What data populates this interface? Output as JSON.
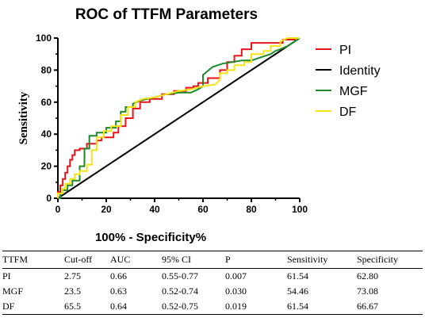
{
  "chart_data": {
    "type": "line",
    "title": "ROC of TTFM Parameters",
    "xlabel": "100%  - Specificity%",
    "ylabel": "Sensitivity",
    "xlim": [
      0,
      100
    ],
    "ylim": [
      0,
      100
    ],
    "xticks": [
      "0",
      "20",
      "40",
      "60",
      "80",
      "100"
    ],
    "yticks": [
      "0",
      "20",
      "40",
      "60",
      "80",
      "100"
    ],
    "legend_position": "right",
    "grid": false,
    "series": [
      {
        "name": "PI",
        "color": "#e8141b",
        "x": [
          0,
          0,
          1,
          1,
          2,
          2,
          3,
          3,
          4,
          4,
          5,
          5,
          6,
          6,
          7,
          7,
          9,
          9,
          12,
          12,
          16,
          16,
          18,
          18,
          23,
          23,
          25,
          25,
          28,
          28,
          31,
          31,
          34,
          34,
          38,
          38,
          43,
          43,
          48,
          48,
          53,
          53,
          56,
          56,
          58,
          58,
          62,
          62,
          67,
          67,
          70,
          70,
          73,
          73,
          76,
          76,
          80,
          80,
          93,
          93,
          98,
          98,
          100
        ],
        "y": [
          0,
          4,
          4,
          8,
          8,
          12,
          12,
          16,
          16,
          20,
          20,
          24,
          24,
          27,
          27,
          30,
          30,
          31,
          31,
          34,
          34,
          36,
          36,
          38,
          38,
          41,
          41,
          45,
          45,
          50,
          50,
          56,
          56,
          60,
          60,
          62,
          62,
          65,
          65,
          67,
          67,
          69,
          69,
          70,
          70,
          72,
          72,
          75,
          75,
          80,
          80,
          85,
          85,
          89,
          89,
          93,
          93,
          97,
          97,
          99,
          99,
          100,
          100
        ]
      },
      {
        "name": "Identity",
        "color": "#000000",
        "x": [
          0,
          100
        ],
        "y": [
          0,
          100
        ]
      },
      {
        "name": "MGF",
        "color": "#1e8a2a",
        "x": [
          0,
          1,
          1,
          2,
          2,
          4,
          4,
          6,
          6,
          9,
          9,
          11,
          11,
          13,
          13,
          16,
          16,
          20,
          20,
          24,
          24,
          26,
          26,
          28,
          28,
          31,
          31,
          34,
          40,
          45,
          50,
          55,
          58,
          60,
          60,
          64,
          68,
          72,
          76,
          80,
          84,
          88,
          90,
          92,
          95,
          98,
          100
        ],
        "y": [
          0,
          0,
          3,
          3,
          5,
          5,
          8,
          8,
          11,
          11,
          20,
          20,
          31,
          31,
          39,
          39,
          41,
          41,
          44,
          44,
          48,
          48,
          54,
          54,
          57,
          57,
          59,
          61,
          63,
          65,
          66,
          66,
          68,
          70,
          77,
          82,
          84,
          85,
          86,
          86,
          88,
          90,
          92,
          93,
          95,
          98,
          100
        ]
      },
      {
        "name": "DF",
        "color": "#f5e316",
        "x": [
          0,
          0,
          2,
          2,
          3,
          3,
          5,
          5,
          7,
          7,
          9,
          9,
          12,
          12,
          14,
          14,
          16,
          16,
          19,
          19,
          22,
          22,
          26,
          26,
          29,
          29,
          32,
          32,
          35,
          40,
          45,
          50,
          55,
          60,
          65,
          67,
          67,
          70,
          70,
          73,
          73,
          77,
          77,
          80,
          80,
          85,
          85,
          88,
          88,
          92,
          92,
          95,
          100
        ],
        "y": [
          0,
          3,
          3,
          6,
          6,
          9,
          9,
          12,
          12,
          15,
          15,
          17,
          17,
          21,
          21,
          30,
          30,
          38,
          38,
          42,
          42,
          45,
          45,
          52,
          52,
          57,
          57,
          60,
          62,
          63,
          65,
          67,
          68,
          70,
          71,
          74,
          78,
          78,
          80,
          80,
          83,
          83,
          85,
          85,
          90,
          90,
          92,
          92,
          95,
          95,
          98,
          100,
          100
        ]
      }
    ]
  },
  "table": {
    "headers": [
      "TTFM",
      "Cut-off",
      "AUC",
      "95% CI",
      "P",
      "Sensitivity",
      "Specificity"
    ],
    "rows": [
      [
        "PI",
        "2.75",
        "0.66",
        "0.55-0.77",
        "0.007",
        "61.54",
        "62.80"
      ],
      [
        "MGF",
        "23.5",
        "0.63",
        "0.52-0.74",
        "0.030",
        "54.46",
        "73.08"
      ],
      [
        "DF",
        "65.5",
        "0.64",
        "0.52-0.75",
        "0.019",
        "61.54",
        "66.67"
      ]
    ]
  }
}
